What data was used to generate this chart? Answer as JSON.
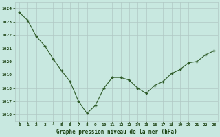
{
  "x": [
    0,
    1,
    2,
    3,
    4,
    5,
    6,
    7,
    8,
    9,
    10,
    11,
    12,
    13,
    14,
    15,
    16,
    17,
    18,
    19,
    20,
    21,
    22,
    23
  ],
  "y": [
    1023.7,
    1023.1,
    1021.9,
    1021.2,
    1020.2,
    1019.3,
    1018.5,
    1017.0,
    1016.1,
    1016.7,
    1018.0,
    1018.8,
    1018.8,
    1018.6,
    1018.0,
    1017.6,
    1018.2,
    1018.5,
    1019.1,
    1019.4,
    1019.9,
    1020.0,
    1020.5,
    1020.8
  ],
  "line_color": "#2d5a27",
  "marker_color": "#2d5a27",
  "bg_color": "#c8e8e0",
  "grid_color": "#b0c8c4",
  "xlabel": "Graphe pression niveau de la mer (hPa)",
  "xlabel_color": "#1a4010",
  "tick_label_color": "#1a4010",
  "ylim": [
    1015.5,
    1024.5
  ],
  "yticks": [
    1016,
    1017,
    1018,
    1019,
    1020,
    1021,
    1022,
    1023,
    1024
  ],
  "xticks": [
    0,
    1,
    2,
    3,
    4,
    5,
    6,
    7,
    8,
    9,
    10,
    11,
    12,
    13,
    14,
    15,
    16,
    17,
    18,
    19,
    20,
    21,
    22,
    23
  ],
  "figsize": [
    3.2,
    2.0
  ],
  "dpi": 100
}
